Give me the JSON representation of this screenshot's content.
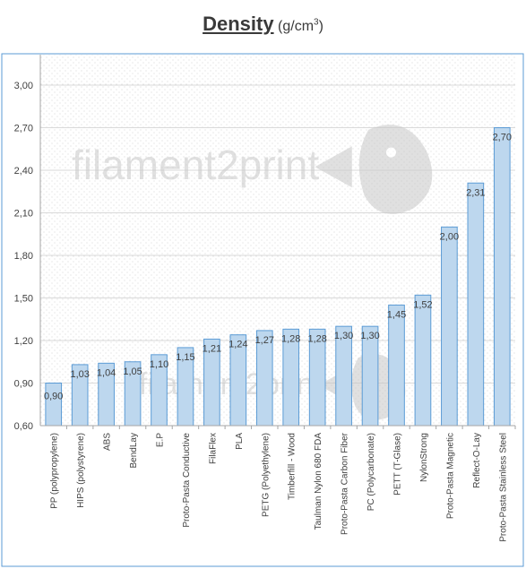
{
  "title": "Density",
  "unit_prefix": "(g/cm",
  "unit_sup": "3",
  "unit_suffix": ")",
  "watermark": "filament2print",
  "colors": {
    "bar_fill": "#bdd7ee",
    "bar_stroke": "#5b9bd5",
    "grid": "#d9d9d9",
    "axis": "#a6a6a6",
    "text": "#404040",
    "frame": "#5b9bd5",
    "watermark": "#c8c8c8"
  },
  "chart_data": {
    "type": "bar",
    "title": "Density (g/cm3)",
    "xlabel": "",
    "ylabel": "",
    "ylim": [
      0.6,
      3.0
    ],
    "yticks": [
      "0,60",
      "0,90",
      "1,20",
      "1,50",
      "1,80",
      "2,10",
      "2,40",
      "2,70",
      "3,00"
    ],
    "ytick_values": [
      0.6,
      0.9,
      1.2,
      1.5,
      1.8,
      2.1,
      2.4,
      2.7,
      3.0
    ],
    "grid": true,
    "legend": "none",
    "categories": [
      "PP (polypropylene)",
      "HIPS (polystyrene)",
      "ABS",
      "BendLay",
      "E.P",
      "Proto-Pasta Conductive",
      "FilaFlex",
      "PLA",
      "PETG (Polyethylene)",
      "Timberfill - Wood",
      "Taulman Nylon 680 FDA",
      "Proto-Pasta Carbon Fiber",
      "PC (Polycarbonate)",
      "PETT (T-Glase)",
      "NylonStrong",
      "Proto-Pasta Magnetic",
      "Reflect-O-Lay",
      "Proto-Pasta Stainless Steel"
    ],
    "values": [
      0.9,
      1.03,
      1.04,
      1.05,
      1.1,
      1.15,
      1.21,
      1.24,
      1.27,
      1.28,
      1.28,
      1.3,
      1.3,
      1.45,
      1.52,
      2.0,
      2.31,
      2.7
    ],
    "value_labels": [
      "0,90",
      "1,03",
      "1,04",
      "1,05",
      "1,10",
      "1,15",
      "1,21",
      "1,24",
      "1,27",
      "1,28",
      "1,28",
      "1,30",
      "1,30",
      "1,45",
      "1,52",
      "2,00",
      "2,31",
      "2,70"
    ]
  }
}
